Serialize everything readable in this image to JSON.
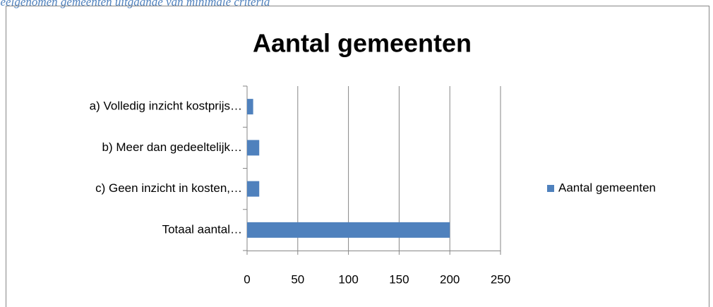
{
  "caption": "deelgenomen gemeenten uitgaande van minimale criteria",
  "chart_data": {
    "type": "bar",
    "orientation": "horizontal",
    "title": "Aantal gemeenten",
    "categories": [
      "a) Volledig inzicht kostprijs…",
      "b) Meer dan gedeeltelijk…",
      "c) Geen inzicht in kosten,…",
      "Totaal aantal…"
    ],
    "series": [
      {
        "name": "Aantal gemeenten",
        "color": "#4f81bd",
        "values": [
          6,
          12,
          12,
          200
        ]
      }
    ],
    "xlim": [
      0,
      250
    ],
    "xticks": [
      0,
      50,
      100,
      150,
      200,
      250
    ],
    "grid": true,
    "legend": "right"
  }
}
